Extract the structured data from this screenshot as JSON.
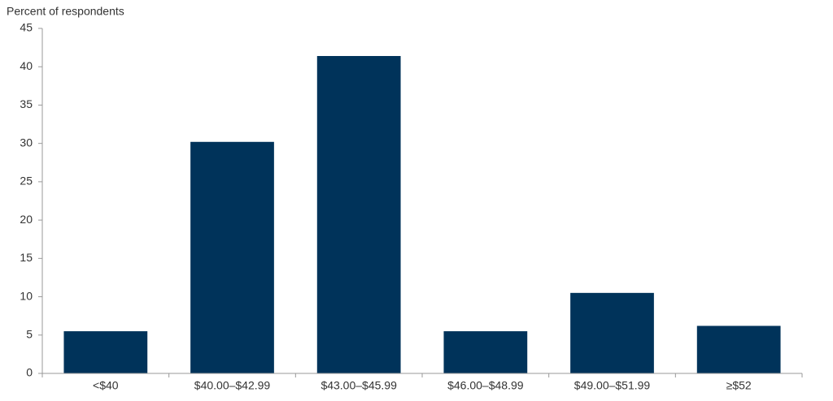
{
  "chart_data": {
    "type": "bar",
    "y_label": "Percent of respondents",
    "categories": [
      "<$40",
      "$40.00–$42.99",
      "$43.00–$45.99",
      "$46.00–$48.99",
      "$49.00–$51.99",
      "≥$52"
    ],
    "values": [
      5.5,
      30.2,
      41.4,
      5.5,
      10.5,
      6.2
    ],
    "color": "#00335a",
    "ylim": [
      0,
      45
    ],
    "yticks": [
      0,
      5,
      10,
      15,
      20,
      25,
      30,
      35,
      40,
      45
    ],
    "grid": false
  }
}
